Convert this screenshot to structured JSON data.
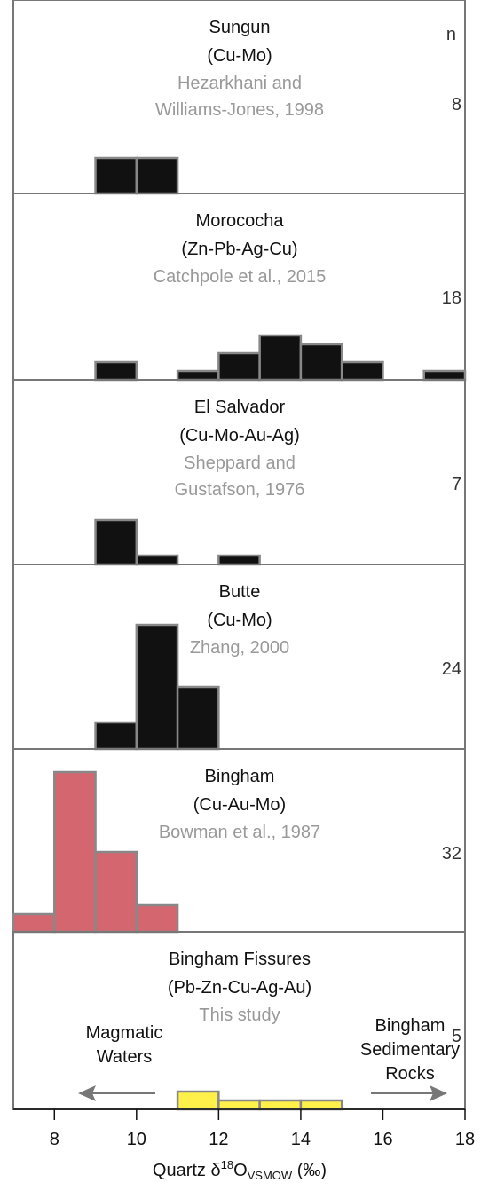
{
  "chart_data": {
    "type": "histogram",
    "bins": [
      7,
      8,
      9,
      10,
      11,
      12,
      13,
      14,
      15,
      16,
      17,
      18
    ],
    "xlim": [
      7,
      18
    ],
    "xticks": [
      8,
      10,
      12,
      14,
      16,
      18
    ],
    "ylim": [
      0,
      20
    ],
    "n_label": "n",
    "xlabel": {
      "main": "Quartz δ",
      "sup": "18",
      "mid": "O",
      "sub": "VSMOW",
      "end": " (‰)"
    },
    "series": [
      {
        "name": "Sungun",
        "subtitle": "(Cu-Mo)",
        "source": [
          "Hezarkhani and",
          "Williams-Jones, 1998"
        ],
        "n": 8,
        "color": "#111111",
        "values": [
          0,
          0,
          4,
          4,
          0,
          0,
          0,
          0,
          0,
          0,
          0
        ]
      },
      {
        "name": "Morococha",
        "subtitle": "(Zn-Pb-Ag-Cu)",
        "source": [
          "Catchpole et al., 2015"
        ],
        "n": 18,
        "color": "#111111",
        "values": [
          0,
          0,
          2,
          0,
          1,
          3,
          5,
          4,
          2,
          0,
          1
        ]
      },
      {
        "name": "El Salvador",
        "subtitle": "(Cu-Mo-Au-Ag)",
        "source": [
          "Sheppard and",
          "Gustafson, 1976"
        ],
        "n": 7,
        "color": "#111111",
        "values": [
          0,
          0,
          5,
          1,
          0,
          1,
          0,
          0,
          0,
          0,
          0
        ]
      },
      {
        "name": "Butte",
        "subtitle": "(Cu-Mo)",
        "source": [
          "Zhang, 2000"
        ],
        "n": 24,
        "color": "#111111",
        "values": [
          0,
          0,
          3,
          14,
          7,
          0,
          0,
          0,
          0,
          0,
          0
        ]
      },
      {
        "name": "Bingham",
        "subtitle": "(Cu-Au-Mo)",
        "source": [
          "Bowman et al., 1987"
        ],
        "n": 32,
        "color": "#d4666f",
        "values": [
          2,
          18,
          9,
          3,
          0,
          0,
          0,
          0,
          0,
          0,
          0
        ]
      },
      {
        "name": "Bingham Fissures",
        "subtitle": "(Pb-Zn-Cu-Ag-Au)",
        "source": [
          "This study"
        ],
        "n": 5,
        "color": "#fff04a",
        "values": [
          0,
          0,
          0,
          0,
          2,
          1,
          1,
          1,
          0,
          0,
          0
        ]
      }
    ],
    "annotations": [
      {
        "lines": [
          "Magmatic",
          "Waters"
        ],
        "direction": "left"
      },
      {
        "lines": [
          "Bingham",
          "Sedimentary",
          "Rocks"
        ],
        "direction": "right"
      }
    ]
  }
}
